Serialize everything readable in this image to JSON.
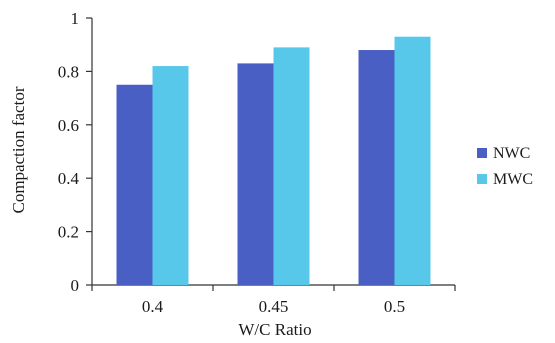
{
  "chart_data": {
    "type": "bar",
    "title": "",
    "xlabel": "W/C Ratio",
    "ylabel": "Compaction factor",
    "categories": [
      "0.4",
      "0.45",
      "0.5"
    ],
    "ylim": [
      0,
      1
    ],
    "yticks": [
      "0",
      "0.2",
      "0.4",
      "0.6",
      "0.8",
      "1"
    ],
    "grid": false,
    "legend_position": "right",
    "series": [
      {
        "name": "NWC",
        "color": "#4a5fc4",
        "values": [
          0.75,
          0.83,
          0.88
        ]
      },
      {
        "name": "MWC",
        "color": "#58c8ea",
        "values": [
          0.82,
          0.89,
          0.93
        ]
      }
    ]
  }
}
